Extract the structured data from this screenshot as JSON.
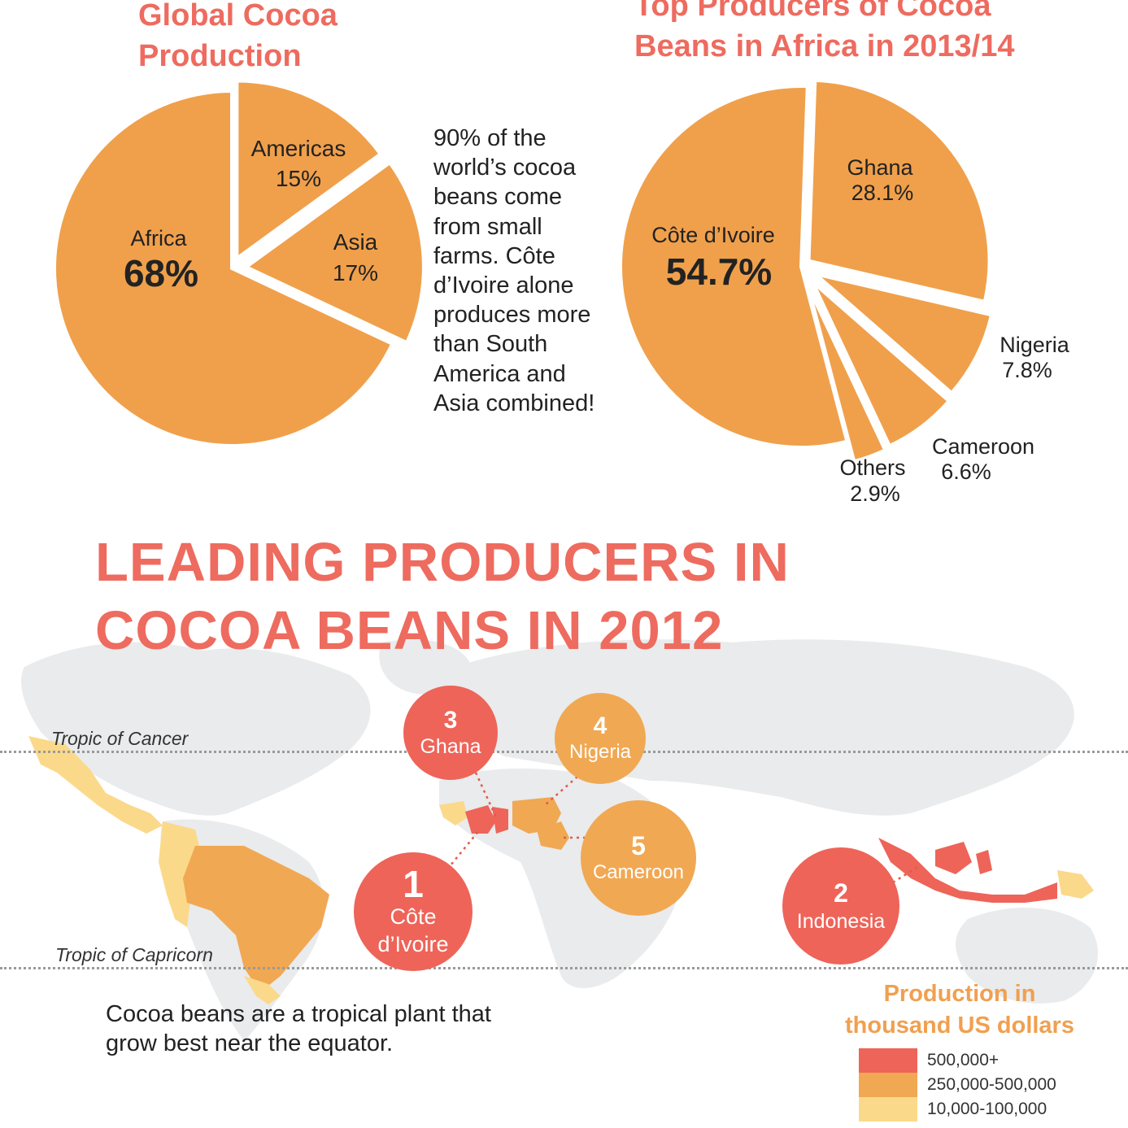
{
  "colors": {
    "pie_fill": "#f0a04b",
    "title": "#ee6b5f",
    "legend_title": "#f0a050",
    "tier_high": "#ee6459",
    "tier_mid": "#f1a853",
    "tier_low": "#fbd98a",
    "land": "#e9ebec"
  },
  "chart_data": [
    {
      "type": "pie",
      "title_line1": "Global Cocoa",
      "title_line2": "Production",
      "slices": [
        {
          "label": "Africa",
          "value": 68,
          "value_text": "68%"
        },
        {
          "label": "Americas",
          "value": 15,
          "value_text": "15%"
        },
        {
          "label": "Asia",
          "value": 17,
          "value_text": "17%"
        }
      ]
    },
    {
      "type": "pie",
      "title_line1": "Top Producers of Cocoa",
      "title_line2": "Beans in Africa in 2013/14",
      "slices": [
        {
          "label": "Côte d’Ivoire",
          "value": 54.7,
          "value_text": "54.7%"
        },
        {
          "label": "Ghana",
          "value": 28.1,
          "value_text": "28.1%"
        },
        {
          "label": "Nigeria",
          "value": 7.8,
          "value_text": "7.8%"
        },
        {
          "label": "Cameroon",
          "value": 6.6,
          "value_text": "6.6%"
        },
        {
          "label": "Others",
          "value": 2.9,
          "value_text": "2.9%"
        }
      ]
    }
  ],
  "fact_lines": [
    "90% of the",
    "world’s cocoa",
    "beans come",
    "from small",
    "farms. Côte",
    "d’Ivoire alone",
    "produces more",
    "than South",
    "America and",
    "Asia combined!"
  ],
  "map": {
    "title_line1": "LEADING PRODUCERS IN",
    "title_line2": "COCOA BEANS IN 2012",
    "tropic_cancer": "Tropic of Cancer",
    "tropic_capricorn": "Tropic of Capricorn",
    "producers": [
      {
        "rank": "1",
        "name_line1": "Côte",
        "name_line2": "d’Ivoire"
      },
      {
        "rank": "2",
        "name_line1": "Indonesia",
        "name_line2": ""
      },
      {
        "rank": "3",
        "name_line1": "Ghana",
        "name_line2": ""
      },
      {
        "rank": "4",
        "name_line1": "Nigeria",
        "name_line2": ""
      },
      {
        "rank": "5",
        "name_line1": "Cameroon",
        "name_line2": ""
      }
    ],
    "caption_line1": "Cocoa beans are a tropical plant that",
    "caption_line2": "grow best near the equator."
  },
  "legend": {
    "title_line1": "Production in",
    "title_line2": "thousand US dollars",
    "items": [
      {
        "label": "500,000+",
        "color": "#ee6459"
      },
      {
        "label": "250,000-500,000",
        "color": "#f1a853"
      },
      {
        "label": "10,000-100,000",
        "color": "#fbd98a"
      }
    ]
  }
}
